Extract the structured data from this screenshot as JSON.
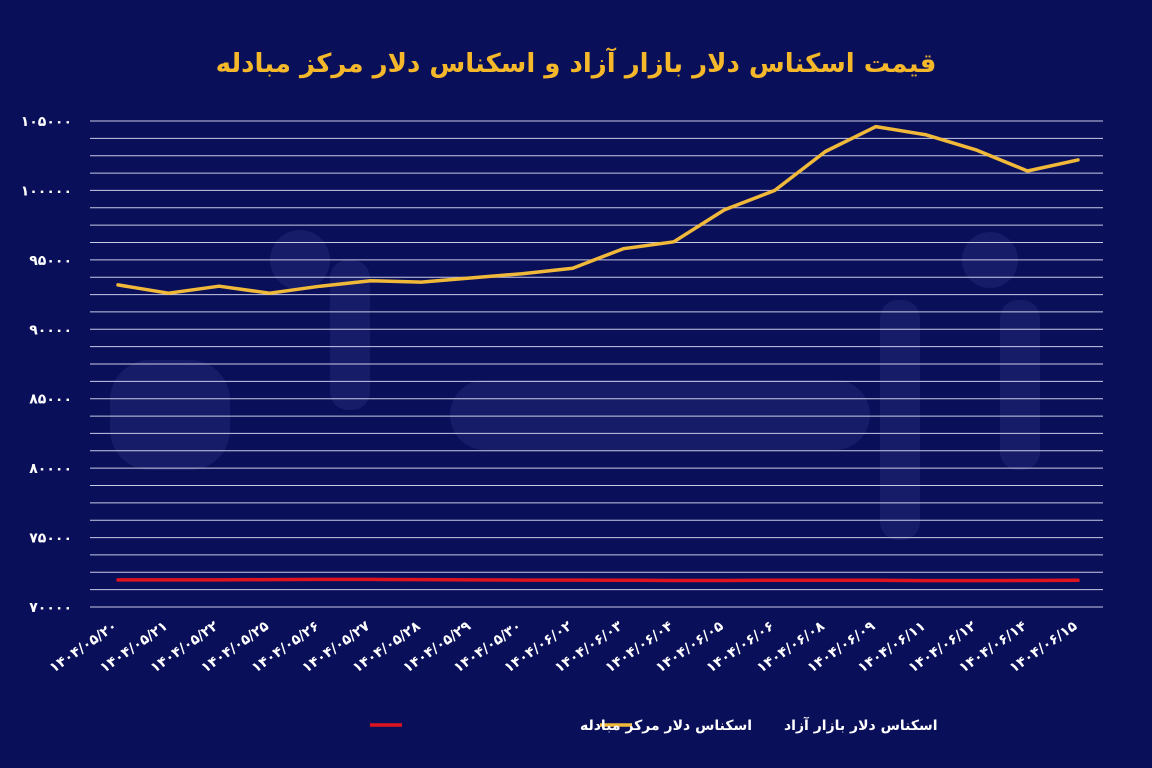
{
  "colors": {
    "background": "#0a0f5a",
    "title": "#f5b82a",
    "grid": "#c8cbe6",
    "free_market": "#f0b93a",
    "exchange_center": "#e0141e",
    "text": "#ffffff"
  },
  "chart_data": {
    "type": "line",
    "title": "قیمت اسکناس دلار بازار آزاد و اسکناس دلار مرکز مبادله",
    "xlabel": "",
    "ylabel": "",
    "ylim": [
      70000,
      105000
    ],
    "grid": true,
    "legend_position": "bottom",
    "y_ticks": [
      70000,
      75000,
      80000,
      85000,
      90000,
      95000,
      100000,
      105000
    ],
    "y_tick_labels": [
      "۷۰۰۰۰",
      "۷۵۰۰۰",
      "۸۰۰۰۰",
      "۸۵۰۰۰",
      "۹۰۰۰۰",
      "۹۵۰۰۰",
      "۱۰۰۰۰۰",
      "۱۰۵۰۰۰"
    ],
    "categories": [
      "۱۴۰۴/۰۵/۲۰",
      "۱۴۰۴/۰۵/۲۱",
      "۱۴۰۴/۰۵/۲۲",
      "۱۴۰۴/۰۵/۲۵",
      "۱۴۰۴/۰۵/۲۶",
      "۱۴۰۴/۰۵/۲۷",
      "۱۴۰۴/۰۵/۲۸",
      "۱۴۰۴/۰۵/۲۹",
      "۱۴۰۴/۰۵/۳۰",
      "۱۴۰۴/۰۶/۰۲",
      "۱۴۰۴/۰۶/۰۳",
      "۱۴۰۴/۰۶/۰۴",
      "۱۴۰۴/۰۶/۰۵",
      "۱۴۰۴/۰۶/۰۶",
      "۱۴۰۴/۰۶/۰۸",
      "۱۴۰۴/۰۶/۰۹",
      "۱۴۰۴/۰۶/۱۱",
      "۱۴۰۴/۰۶/۱۲",
      "۱۴۰۴/۰۶/۱۴",
      "۱۴۰۴/۰۶/۱۵"
    ],
    "series": [
      {
        "name": "اسکناس دلار بازار آزاد",
        "color": "#f0b93a",
        "values": [
          93200,
          92600,
          93100,
          92600,
          93100,
          93500,
          93400,
          93700,
          94000,
          94400,
          95800,
          96300,
          98600,
          100000,
          102800,
          104600,
          104000,
          102900,
          101400,
          102200
        ]
      },
      {
        "name": "اسکناس دلار مرکز مبادله",
        "color": "#e0141e",
        "values": [
          71950,
          71950,
          71950,
          71970,
          71990,
          71990,
          71970,
          71950,
          71940,
          71940,
          71930,
          71910,
          71910,
          71930,
          71930,
          71920,
          71900,
          71900,
          71910,
          71920
        ]
      }
    ]
  }
}
